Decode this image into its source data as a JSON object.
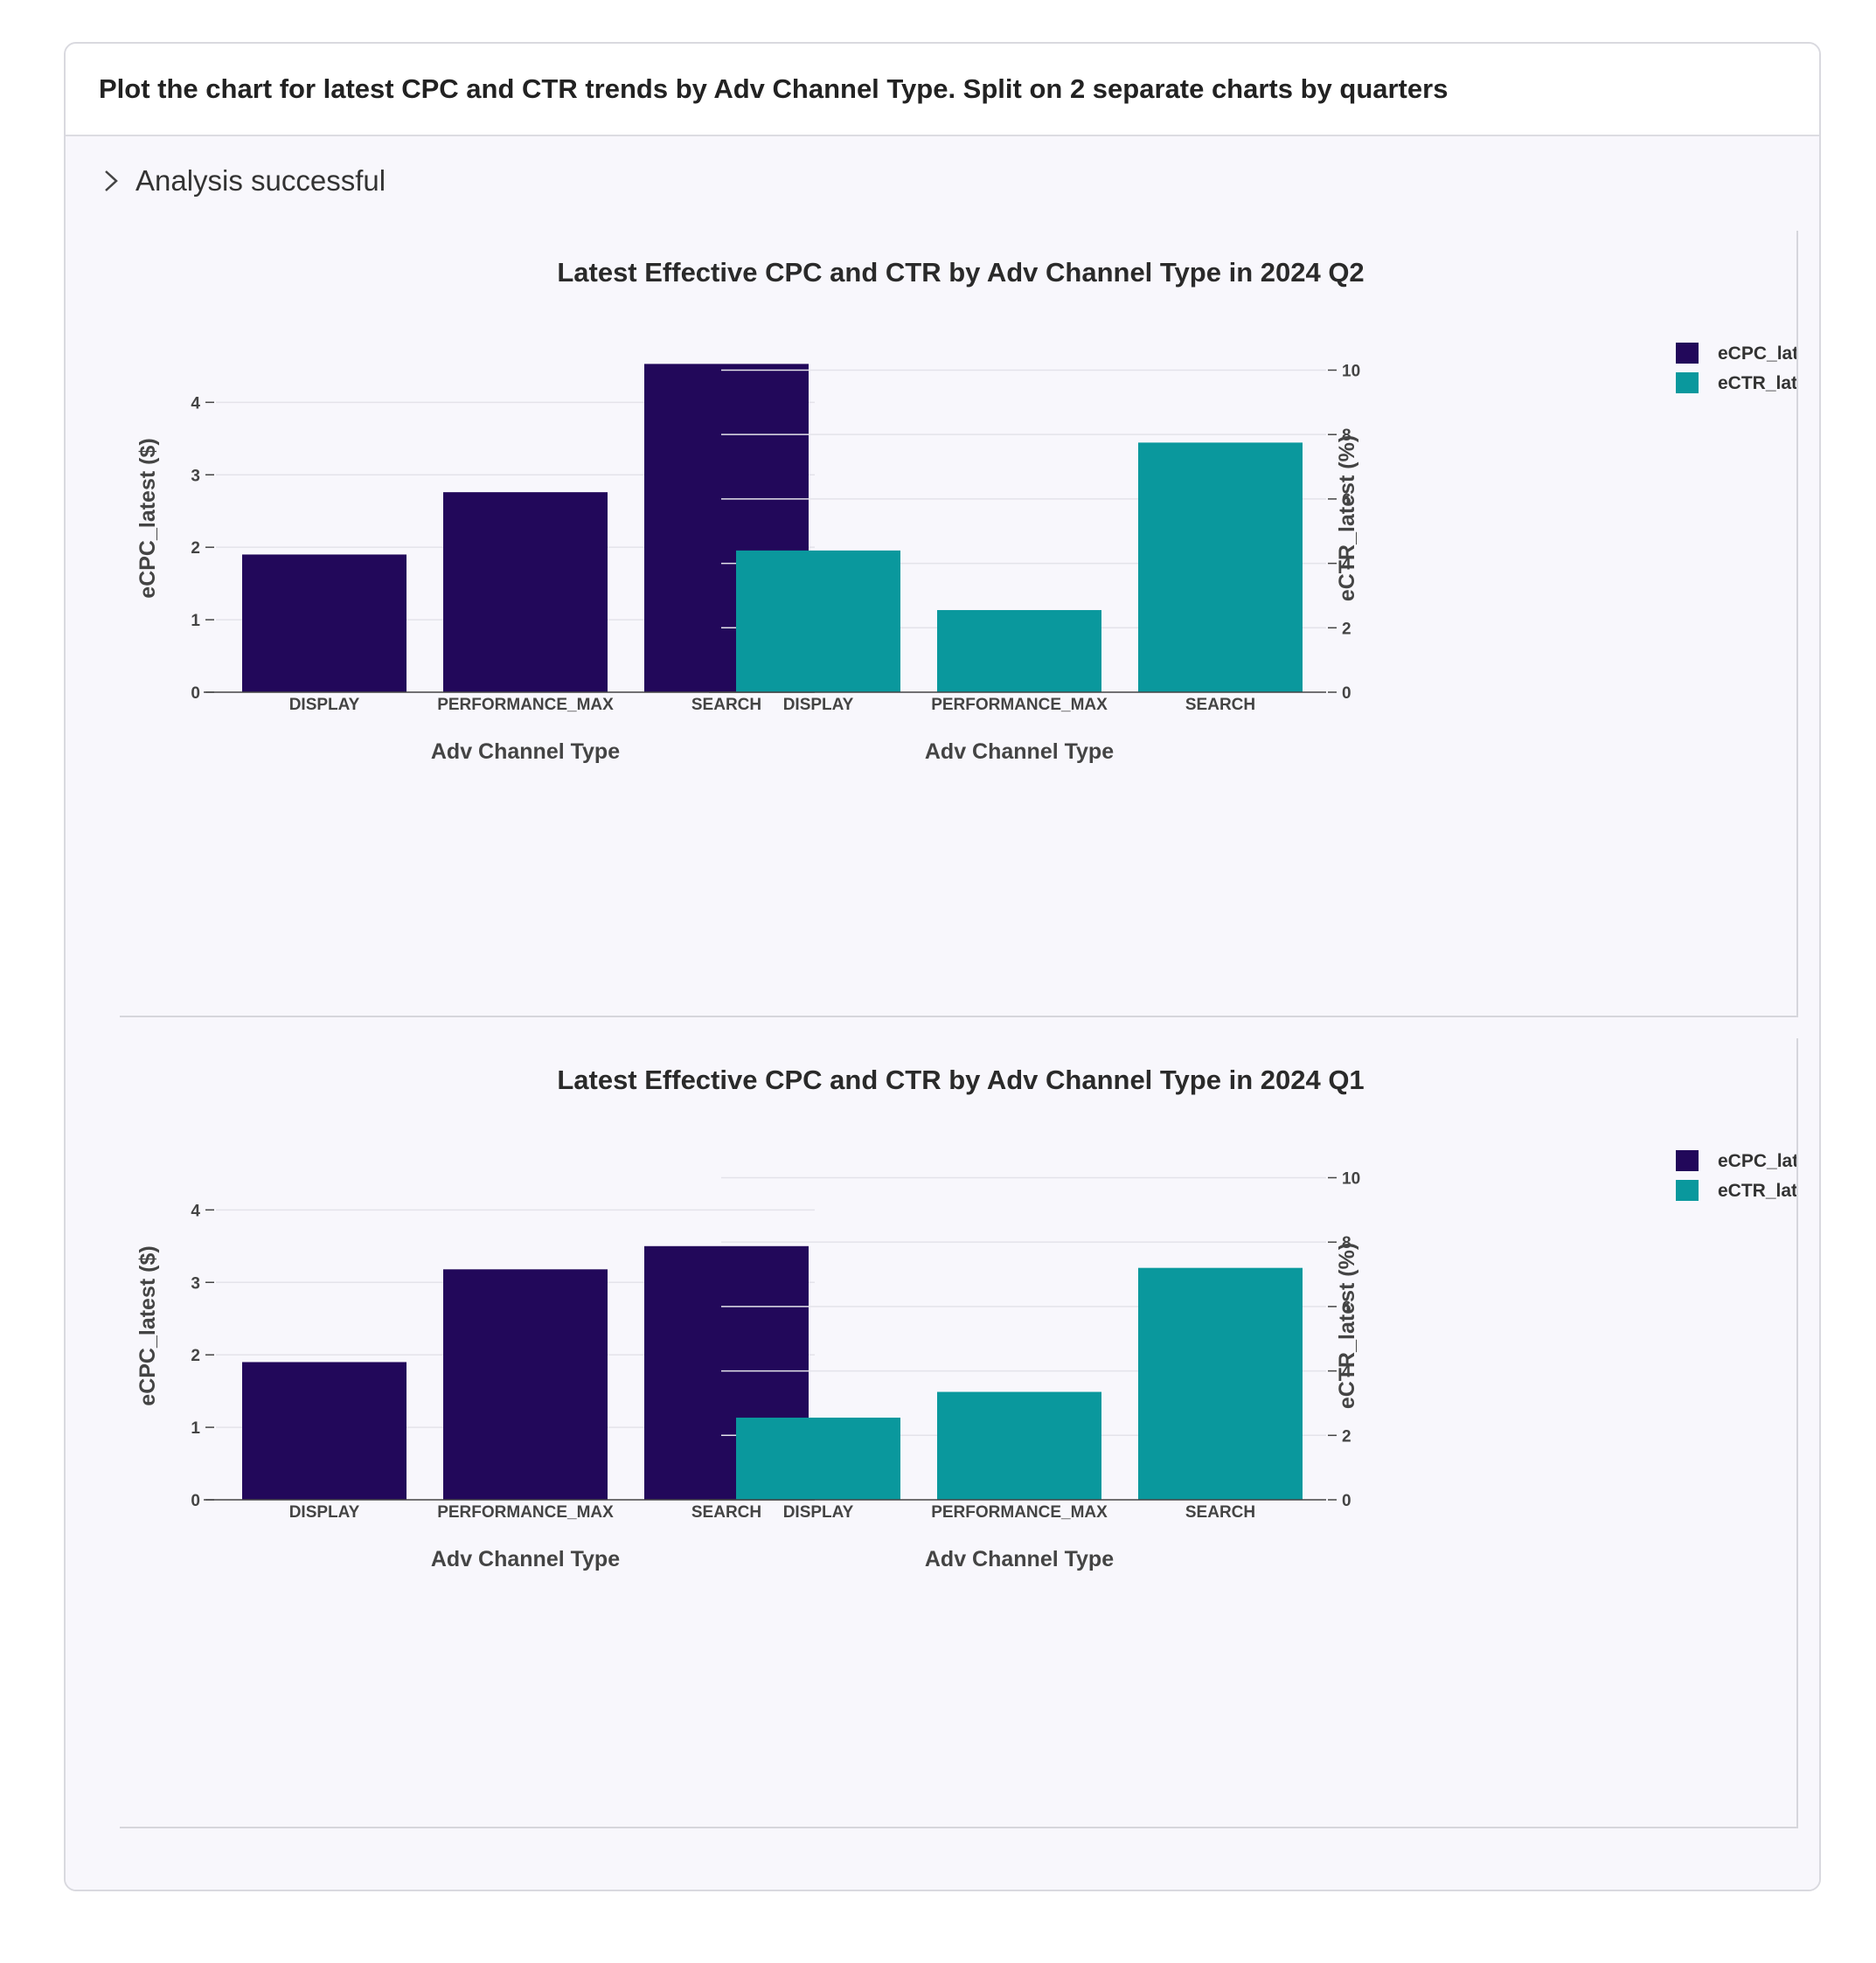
{
  "prompt": "Plot the chart for latest CPC and CTR trends by Adv Channel Type. Split on 2 separate charts by quarters",
  "status": "Analysis successful",
  "colors": {
    "cpc": "#22085a",
    "ctr": "#0a989d",
    "grid": "#e4e3ea",
    "axis": "#444444"
  },
  "chart_data": [
    {
      "type": "bar",
      "title": "Latest Effective CPC and CTR by Adv Channel Type in 2024 Q2",
      "categories": [
        "DISPLAY",
        "PERFORMANCE_MAX",
        "SEARCH"
      ],
      "xlabel": "Adv Channel Type",
      "legend": [
        "eCPC_latest",
        "eCTR_latest"
      ],
      "legend_position": "top-right",
      "grid": true,
      "panels": [
        {
          "series": [
            {
              "name": "eCPC_latest",
              "values": [
                1.9,
                2.76,
                4.53
              ]
            }
          ],
          "ylabel": "eCPC_latest ($)",
          "ylim": [
            0,
            4.8
          ],
          "yticks": [
            0,
            1,
            2,
            3,
            4
          ],
          "y_axis_side": "left"
        },
        {
          "series": [
            {
              "name": "eCTR_latest",
              "values": [
                4.4,
                2.55,
                7.75
              ]
            }
          ],
          "ylabel": "eCTR_latest (%)",
          "ylim": [
            0,
            10.8
          ],
          "yticks": [
            0,
            2,
            4,
            6,
            8,
            10
          ],
          "y_axis_side": "right"
        }
      ]
    },
    {
      "type": "bar",
      "title": "Latest Effective CPC and CTR by Adv Channel Type in 2024 Q1",
      "categories": [
        "DISPLAY",
        "PERFORMANCE_MAX",
        "SEARCH"
      ],
      "xlabel": "Adv Channel Type",
      "legend": [
        "eCPC_latest",
        "eCTR_latest"
      ],
      "legend_position": "top-right",
      "grid": true,
      "panels": [
        {
          "series": [
            {
              "name": "eCPC_latest",
              "values": [
                1.9,
                3.18,
                3.5
              ]
            }
          ],
          "ylabel": "eCPC_latest ($)",
          "ylim": [
            0,
            4.8
          ],
          "yticks": [
            0,
            1,
            2,
            3,
            4
          ],
          "y_axis_side": "left"
        },
        {
          "series": [
            {
              "name": "eCTR_latest",
              "values": [
                2.55,
                3.35,
                7.2
              ]
            }
          ],
          "ylabel": "eCTR_latest (%)",
          "ylim": [
            0,
            10.8
          ],
          "yticks": [
            0,
            2,
            4,
            6,
            8,
            10
          ],
          "y_axis_side": "right"
        }
      ]
    }
  ]
}
